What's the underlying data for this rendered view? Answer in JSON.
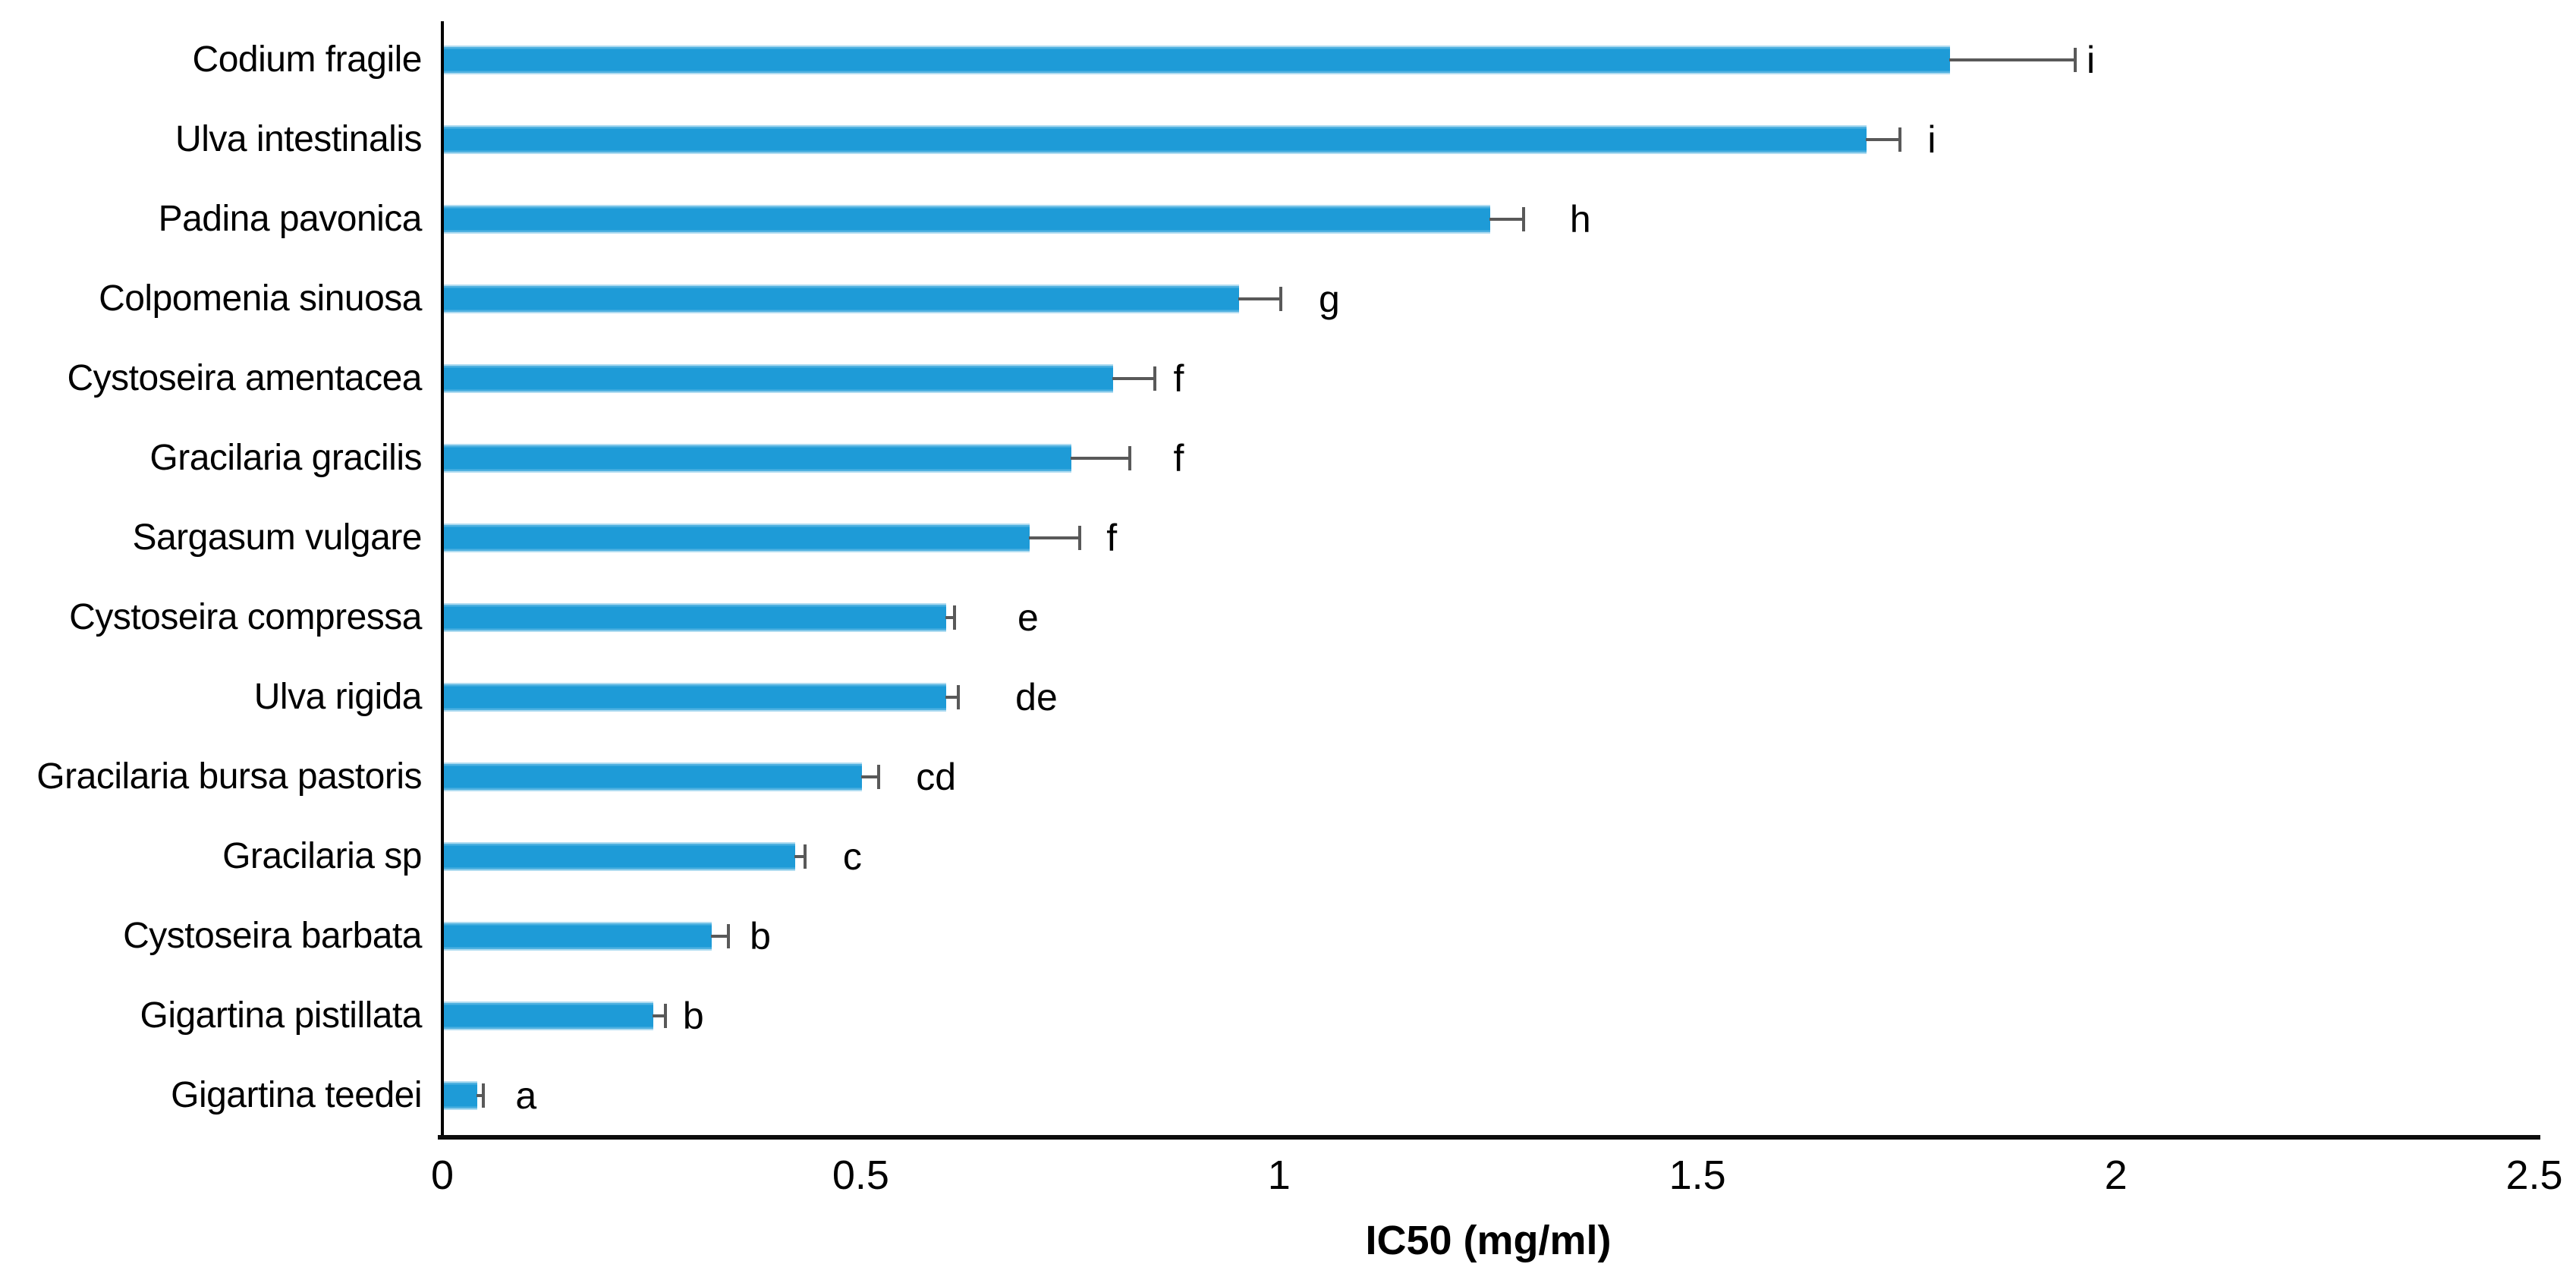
{
  "chart_data": {
    "type": "bar",
    "orientation": "horizontal",
    "title": "",
    "xlabel": "IC50 (mg/ml)",
    "ylabel": "",
    "xlim": [
      0,
      2.5
    ],
    "xticks": [
      0,
      0.5,
      1,
      1.5,
      2,
      2.5
    ],
    "xtick_labels": [
      "0",
      "0.5",
      "1",
      "1.5",
      "2",
      "2.5"
    ],
    "grid": false,
    "legend": false,
    "bar_color": "#1E9BD7",
    "error_bar_color": "#595959",
    "axis_color": "#000000",
    "categories": [
      "Codium fragile",
      "Ulva intestinalis",
      "Padina pavonica",
      "Colpomenia sinuosa",
      "Cystoseira amentacea",
      "Gracilaria gracilis",
      "Sargasum vulgare",
      "Cystoseira compressa",
      "Ulva rigida",
      "Gracilaria bursa pastoris",
      "Gracilaria sp",
      "Cystoseira barbata",
      "Gigartina pistillata",
      "Gigartina teedei"
    ],
    "values": [
      1.8,
      1.7,
      1.25,
      0.95,
      0.8,
      0.75,
      0.7,
      0.6,
      0.6,
      0.5,
      0.42,
      0.32,
      0.25,
      0.04
    ],
    "errors_plus": [
      0.15,
      0.04,
      0.04,
      0.05,
      0.05,
      0.07,
      0.06,
      0.01,
      0.015,
      0.02,
      0.012,
      0.02,
      0.015,
      0.007
    ],
    "sig_letters": [
      "i",
      "i",
      "h",
      "g",
      "f",
      "f",
      "f",
      "e",
      "de",
      "cd",
      "c",
      "b",
      "b",
      "a"
    ],
    "sig_letter_x": [
      1.97,
      1.78,
      1.36,
      1.06,
      0.88,
      0.88,
      0.8,
      0.7,
      0.71,
      0.59,
      0.49,
      0.38,
      0.3,
      0.1
    ]
  }
}
